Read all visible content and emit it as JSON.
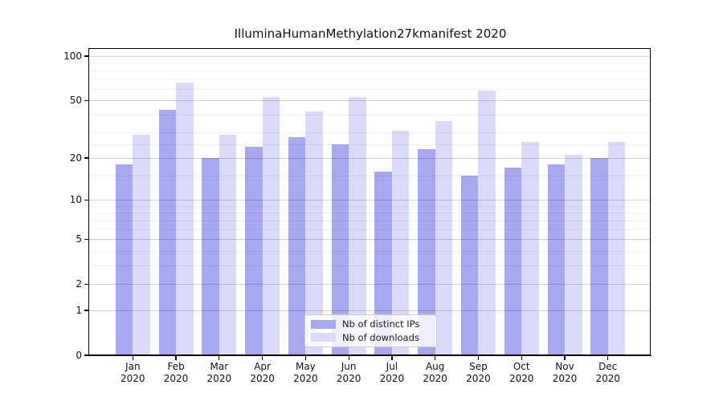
{
  "chart_data": {
    "type": "bar",
    "title": "IlluminaHumanMethylation27kmanifest 2020",
    "categories": [
      "Jan 2020",
      "Feb 2020",
      "Mar 2020",
      "Apr 2020",
      "May 2020",
      "Jun 2020",
      "Jul 2020",
      "Aug 2020",
      "Sep 2020",
      "Oct 2020",
      "Nov 2020",
      "Dec 2020"
    ],
    "series": [
      {
        "name": "Nb of distinct IPs",
        "color": "#a8a8f2",
        "values": [
          18,
          43,
          20,
          24,
          28,
          25,
          16,
          23,
          15,
          17,
          18,
          20
        ]
      },
      {
        "name": "Nb of downloads",
        "color": "#d9d9f8",
        "values": [
          29,
          66,
          29,
          53,
          42,
          53,
          31,
          36,
          58,
          26,
          21,
          26
        ]
      }
    ],
    "ylabel": "",
    "xlabel": "",
    "yscale": "log1p",
    "ylim": [
      0,
      113
    ],
    "yticks": [
      100,
      50,
      20,
      10,
      5,
      2,
      1,
      0
    ],
    "minor_yticks": [
      90,
      80,
      70,
      60,
      40,
      30,
      25,
      15,
      9,
      8,
      7,
      6,
      4,
      3
    ],
    "grid": "horizontal",
    "legend_position": "lower-center",
    "background": "#ffffff",
    "axis_color": "#000000"
  }
}
